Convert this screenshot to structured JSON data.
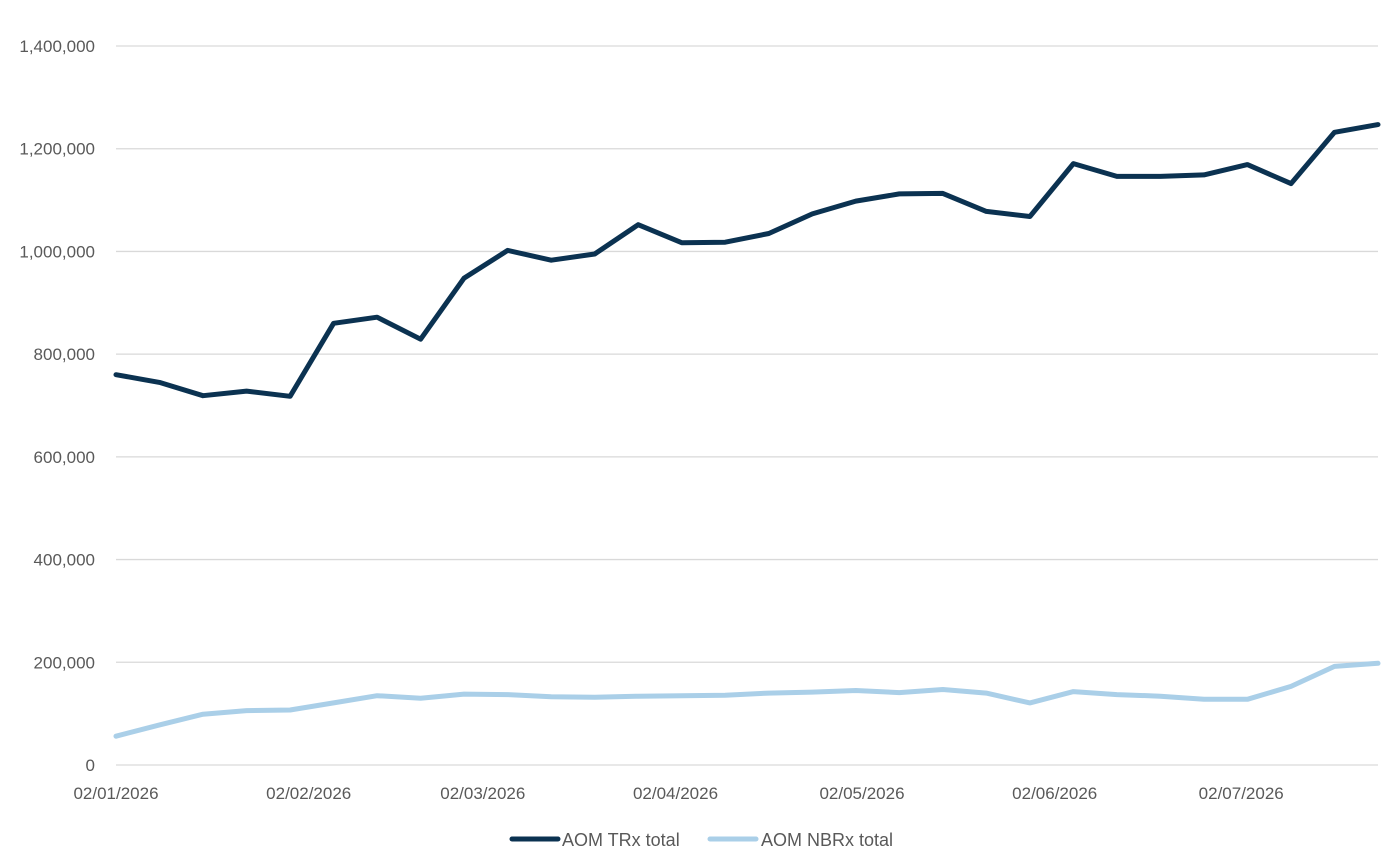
{
  "chart_data": {
    "type": "line",
    "title": "",
    "xlabel": "",
    "ylabel": "",
    "x": [
      "2026-01-02",
      "2026-01-09",
      "2026-01-16",
      "2026-01-23",
      "2026-01-30",
      "2026-02-06",
      "2026-02-13",
      "2026-02-20",
      "2026-02-27",
      "2026-03-06",
      "2026-03-13",
      "2026-03-20",
      "2026-03-27",
      "2026-04-03",
      "2026-04-10",
      "2026-04-17",
      "2026-04-24",
      "2026-05-01",
      "2026-05-08",
      "2026-05-15",
      "2026-05-22",
      "2026-05-29",
      "2026-06-05",
      "2026-06-12",
      "2026-06-19",
      "2026-06-26",
      "2026-07-03",
      "2026-07-10",
      "2026-07-17",
      "2026-07-24"
    ],
    "x_range": [
      "2026-01-02",
      "2026-07-24"
    ],
    "x_ticks": [
      {
        "date": "2026-01-02",
        "label": "02/01/2026"
      },
      {
        "date": "2026-02-02",
        "label": "02/02/2026"
      },
      {
        "date": "2026-03-02",
        "label": "02/03/2026"
      },
      {
        "date": "2026-04-02",
        "label": "02/04/2026"
      },
      {
        "date": "2026-05-02",
        "label": "02/05/2026"
      },
      {
        "date": "2026-06-02",
        "label": "02/06/2026"
      },
      {
        "date": "2026-07-02",
        "label": "02/07/2026"
      }
    ],
    "ylim": [
      0,
      1400000
    ],
    "y_ticks": [
      {
        "value": 0,
        "label": "0"
      },
      {
        "value": 200000,
        "label": "200,000"
      },
      {
        "value": 400000,
        "label": "400,000"
      },
      {
        "value": 600000,
        "label": "600,000"
      },
      {
        "value": 800000,
        "label": "800,000"
      },
      {
        "value": 1000000,
        "label": "1,000,000"
      },
      {
        "value": 1200000,
        "label": "1,200,000"
      },
      {
        "value": 1400000,
        "label": "1,400,000"
      }
    ],
    "grid": "horizontal",
    "legend": "bottom-center",
    "series": [
      {
        "name": "AOM TRx total",
        "color": "#0b3251",
        "values": [
          760000,
          745000,
          719000,
          728000,
          718000,
          860000,
          872000,
          829000,
          948000,
          1002000,
          983000,
          995000,
          1052000,
          1017000,
          1018000,
          1035000,
          1073000,
          1098000,
          1112000,
          1113000,
          1078000,
          1068000,
          1171000,
          1146000,
          1146000,
          1149000,
          1169000,
          1132000,
          1232000,
          1247000
        ]
      },
      {
        "name": "AOM NBRx total",
        "color": "#aacfe8",
        "values": [
          56000,
          78000,
          99000,
          106000,
          107000,
          121000,
          135000,
          130000,
          138000,
          137000,
          133000,
          132000,
          134000,
          135000,
          136000,
          140000,
          142000,
          145000,
          141000,
          147000,
          140000,
          121000,
          143000,
          137000,
          134000,
          128000,
          128000,
          153000,
          192000,
          198000
        ]
      }
    ]
  }
}
